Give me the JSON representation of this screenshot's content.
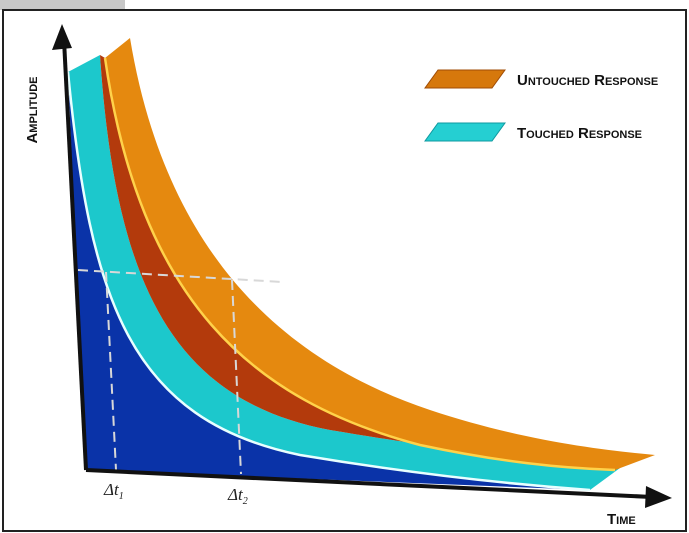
{
  "y_axis": {
    "label": "Amplitude"
  },
  "x_axis": {
    "label": "Time"
  },
  "legend": [
    {
      "label": "Untouched Response"
    },
    {
      "label": "Touched Response"
    }
  ],
  "annotations": [
    {
      "symbol": "Δt",
      "subscript": "1"
    },
    {
      "symbol": "Δt",
      "subscript": "2"
    }
  ]
}
